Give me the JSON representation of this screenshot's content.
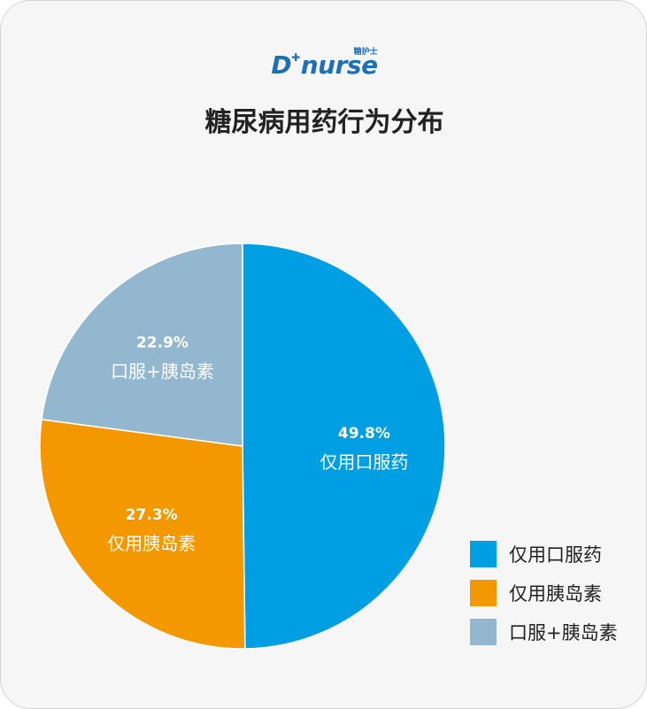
{
  "logo": {
    "d": "D",
    "star": "✚",
    "nurse": "nurse",
    "cn": "糖护士"
  },
  "chart_data": {
    "type": "pie",
    "title": "糖尿病用药行为分布",
    "slices": [
      {
        "name": "仅用口服药",
        "value": 49.8,
        "label": "49.8%",
        "color": "#009fe3"
      },
      {
        "name": "仅用胰岛素",
        "value": 27.3,
        "label": "27.3%",
        "color": "#f39800"
      },
      {
        "name": "口服+胰岛素",
        "value": 22.9,
        "label": "22.9%",
        "color": "#93b7cf"
      }
    ],
    "legend_position": "bottom-right"
  }
}
